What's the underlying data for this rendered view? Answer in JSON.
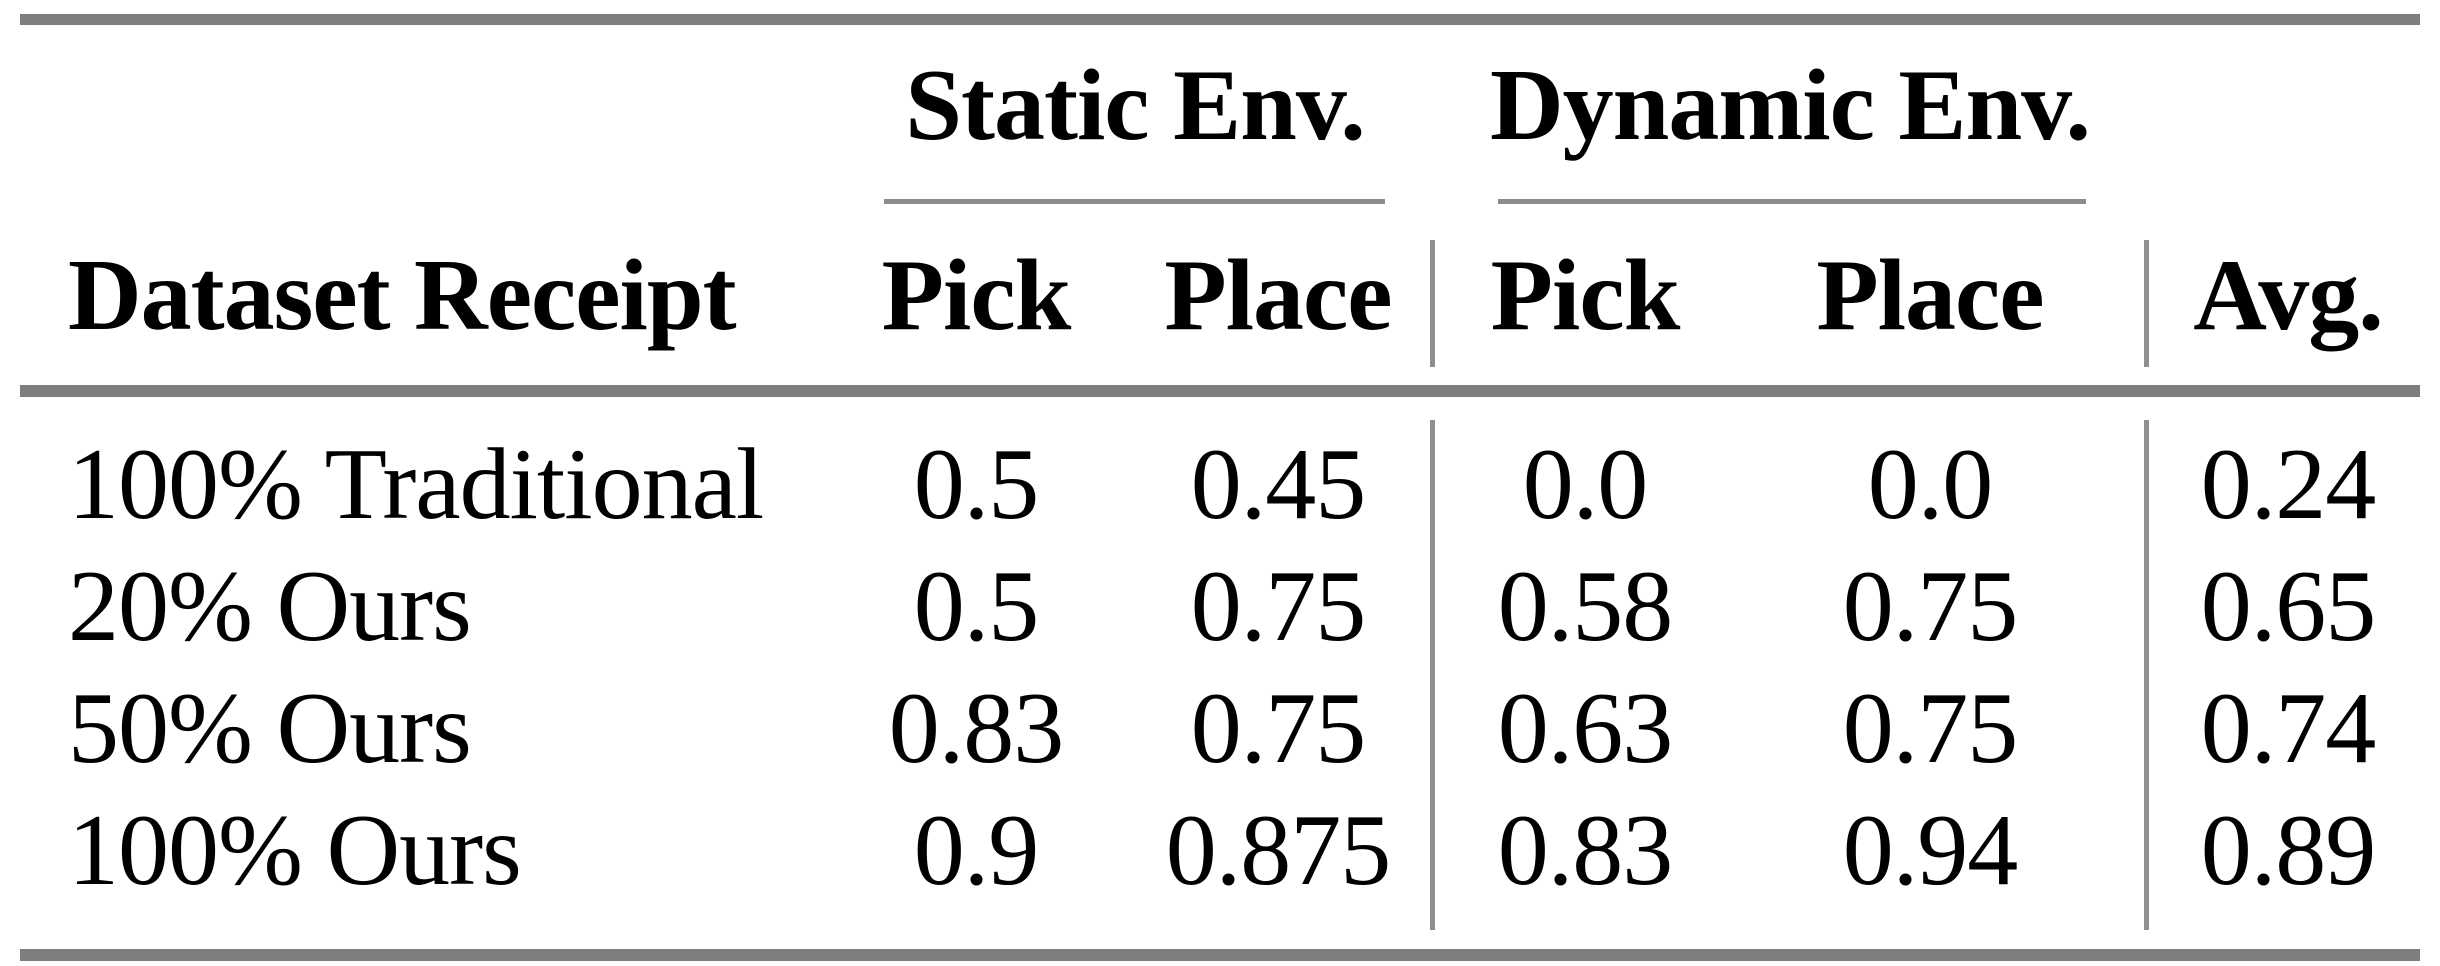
{
  "table": {
    "group_headers": [
      {
        "label": "Static Env."
      },
      {
        "label": "Dynamic Env."
      }
    ],
    "columns": {
      "row_header": "Dataset Receipt",
      "static_pick": "Pick",
      "static_place": "Place",
      "dynamic_pick": "Pick",
      "dynamic_place": "Place",
      "avg": "Avg."
    },
    "rows": [
      {
        "label": "100% Traditional",
        "static_pick": "0.5",
        "static_place": "0.45",
        "dynamic_pick": "0.0",
        "dynamic_place": "0.0",
        "avg": "0.24"
      },
      {
        "label": "20% Ours",
        "static_pick": "0.5",
        "static_place": "0.75",
        "dynamic_pick": "0.58",
        "dynamic_place": "0.75",
        "avg": "0.65"
      },
      {
        "label": "50% Ours",
        "static_pick": "0.83",
        "static_place": "0.75",
        "dynamic_pick": "0.63",
        "dynamic_place": "0.75",
        "avg": "0.74"
      },
      {
        "label": "100% Ours",
        "static_pick": "0.9",
        "static_place": "0.875",
        "dynamic_pick": "0.83",
        "dynamic_place": "0.94",
        "avg": "0.89"
      }
    ],
    "rule_color": "#7e7e7e",
    "separator_color": "#8f8f8f",
    "text_color": "#000000"
  },
  "chart_data": {
    "type": "table",
    "title": "",
    "column_groups": [
      "Static Env.",
      "Dynamic Env."
    ],
    "columns": [
      "Dataset Receipt",
      "Static Env. Pick",
      "Static Env. Place",
      "Dynamic Env. Pick",
      "Dynamic Env. Place",
      "Avg."
    ],
    "categories": [
      "100% Traditional",
      "20% Ours",
      "50% Ours",
      "100% Ours"
    ],
    "series": [
      {
        "name": "Static Env. Pick",
        "values": [
          0.5,
          0.5,
          0.83,
          0.9
        ]
      },
      {
        "name": "Static Env. Place",
        "values": [
          0.45,
          0.75,
          0.75,
          0.875
        ]
      },
      {
        "name": "Dynamic Env. Pick",
        "values": [
          0.0,
          0.58,
          0.63,
          0.83
        ]
      },
      {
        "name": "Dynamic Env. Place",
        "values": [
          0.0,
          0.75,
          0.75,
          0.94
        ]
      },
      {
        "name": "Avg.",
        "values": [
          0.24,
          0.65,
          0.74,
          0.89
        ]
      }
    ]
  }
}
